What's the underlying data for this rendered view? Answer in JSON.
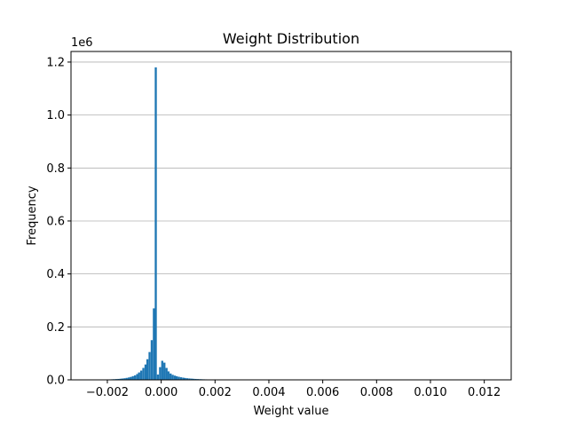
{
  "chart_data": {
    "type": "bar",
    "title": "Weight Distribution",
    "xlabel": "Weight value",
    "ylabel": "Frequency",
    "y_offset_label": "1e6",
    "xlim": [
      -0.00335,
      0.013
    ],
    "ylim": [
      0,
      1240000
    ],
    "x_ticks": [
      -0.002,
      0.0,
      0.002,
      0.004,
      0.006,
      0.008,
      0.01,
      0.012
    ],
    "x_tick_labels": [
      "−0.002",
      "0.000",
      "0.002",
      "0.004",
      "0.006",
      "0.008",
      "0.010",
      "0.012"
    ],
    "y_ticks": [
      0,
      200000,
      400000,
      600000,
      800000,
      1000000,
      1200000
    ],
    "y_tick_labels": [
      "0.0",
      "0.2",
      "0.4",
      "0.6",
      "0.8",
      "1.0",
      "1.2"
    ],
    "grid": "y-axis",
    "bar_color": "#1f77b4",
    "bin_width": 7.76e-05,
    "bins_start": [
      -0.00264,
      -0.00256,
      -0.00248,
      -0.00241,
      -0.00233,
      -0.00225,
      -0.00217,
      -0.0021,
      -0.00202,
      -0.00194,
      -0.00186,
      -0.00179,
      -0.00171,
      -0.00163,
      -0.00155,
      -0.00148,
      -0.0014,
      -0.00132,
      -0.00124,
      -0.00117,
      -0.00109,
      -0.00101,
      -0.00093,
      -0.00086,
      -0.00078,
      -0.0007,
      -0.00062,
      -0.00055,
      -0.00047,
      -0.00039,
      -0.00031,
      -0.00024,
      -0.00016,
      -8e-05,
      0.0,
      8e-05,
      0.00016,
      0.00023,
      0.00031,
      0.00039,
      0.00047,
      0.00054,
      0.00062,
      0.0007,
      0.00078,
      0.00085,
      0.00093,
      0.00101,
      0.00109,
      0.00116,
      0.00124,
      0.00132,
      0.0014,
      0.00147,
      0.00155,
      0.00163,
      0.00171,
      0.00178,
      0.00186,
      0.00194,
      0.00202,
      0.00209,
      0.00217,
      0.00225,
      0.00233,
      0.0024,
      0.00248,
      0.00256,
      0.00264,
      0.00271
    ],
    "values": [
      300,
      400,
      500,
      600,
      700,
      900,
      1100,
      1300,
      1500,
      1800,
      2100,
      2500,
      3000,
      3500,
      4200,
      5000,
      6000,
      7500,
      9000,
      11000,
      14000,
      17000,
      22000,
      28000,
      35000,
      45000,
      58000,
      78000,
      105000,
      150000,
      270000,
      1180000,
      20000,
      48000,
      72000,
      65000,
      45000,
      32000,
      24000,
      19000,
      16000,
      13500,
      11500,
      9800,
      8300,
      7100,
      6100,
      5300,
      4600,
      4000,
      3500,
      3000,
      2600,
      2300,
      2000,
      1800,
      1600,
      1400,
      1200,
      1000,
      900,
      800,
      700,
      600,
      500,
      400,
      350,
      300,
      250,
      200
    ]
  }
}
